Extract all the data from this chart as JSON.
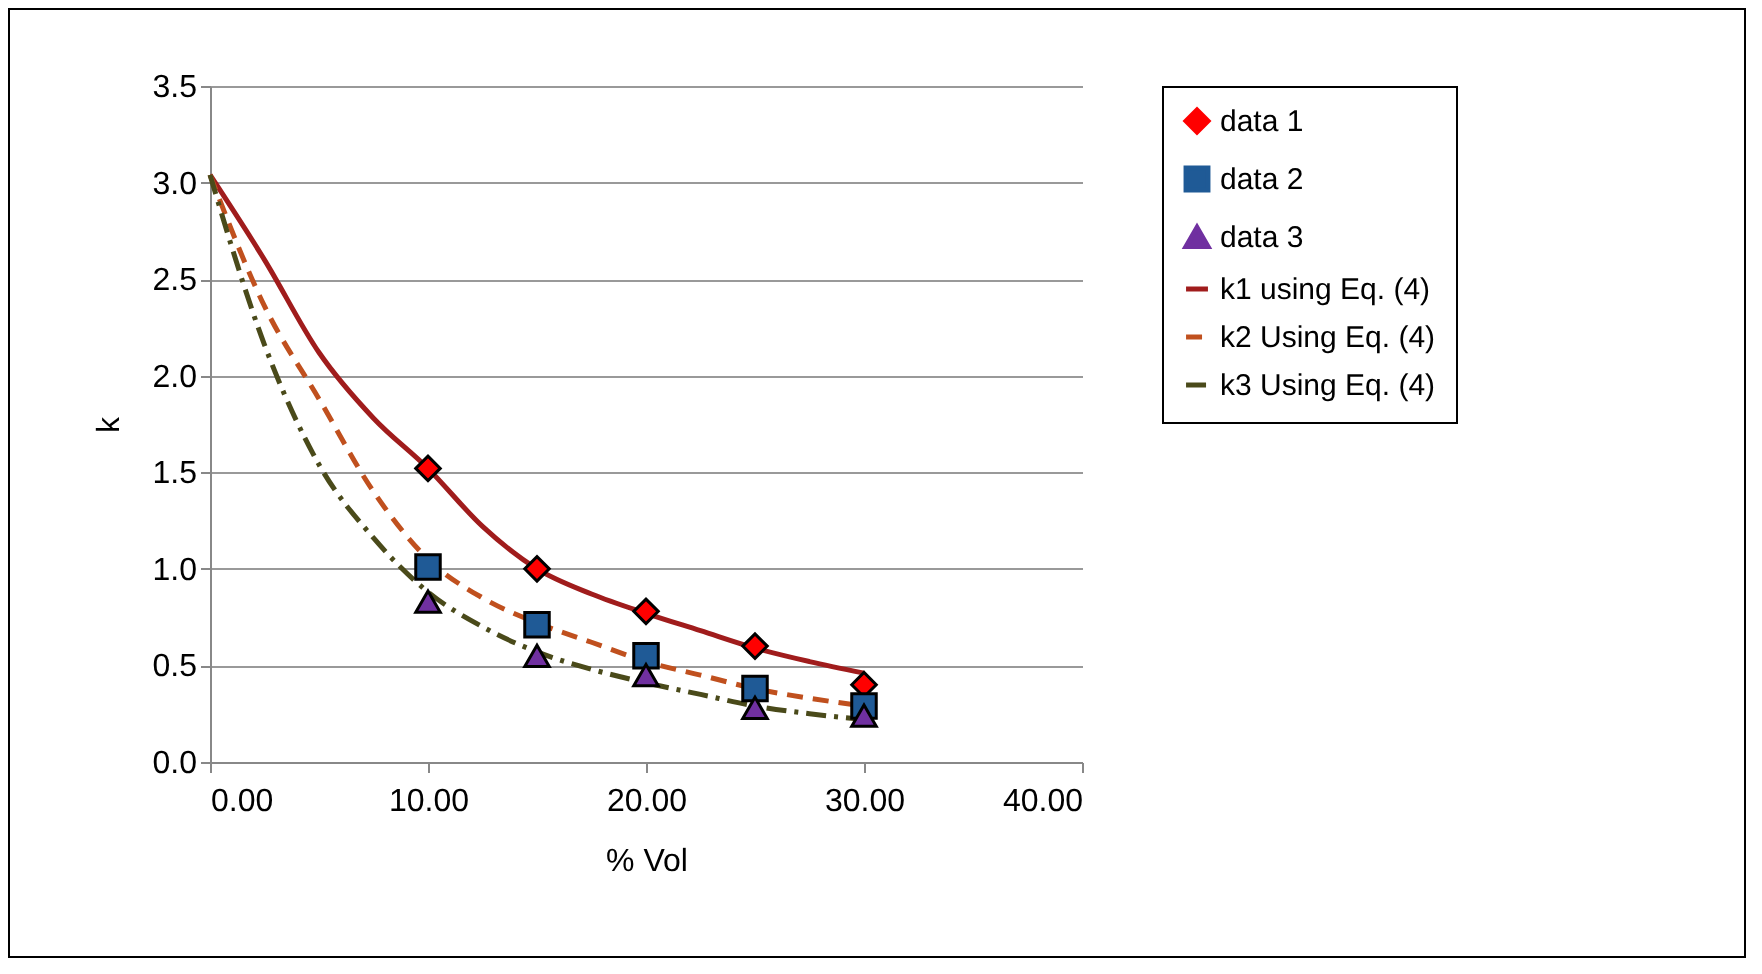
{
  "chart_data": {
    "type": "scatter",
    "xlabel": "% Vol",
    "ylabel": "k",
    "xlim": [
      0,
      40
    ],
    "ylim": [
      0,
      3.5
    ],
    "xticks": [
      {
        "value": 0,
        "label": "0.00"
      },
      {
        "value": 10,
        "label": "10.00"
      },
      {
        "value": 20,
        "label": "20.00"
      },
      {
        "value": 30,
        "label": "30.00"
      },
      {
        "value": 40,
        "label": "40.00"
      }
    ],
    "yticks": [
      {
        "value": 0,
        "label": "0.0"
      },
      {
        "value": 0.5,
        "label": "0.5"
      },
      {
        "value": 1,
        "label": "1.0"
      },
      {
        "value": 1.5,
        "label": "1.5"
      },
      {
        "value": 2,
        "label": "2.0"
      },
      {
        "value": 2.5,
        "label": "2.5"
      },
      {
        "value": 3,
        "label": "3.0"
      },
      {
        "value": 3.5,
        "label": "3.5"
      }
    ],
    "grid": "y",
    "legend": "right",
    "series": [
      {
        "name": "data 1",
        "marker": "diamond",
        "color": "#ff0000",
        "x": [
          10,
          15,
          20,
          25,
          30
        ],
        "values": [
          1.52,
          1.0,
          0.78,
          0.6,
          0.4
        ]
      },
      {
        "name": "data 2",
        "marker": "square",
        "color": "#1f5a96",
        "x": [
          10,
          15,
          20,
          25,
          30
        ],
        "values": [
          1.01,
          0.71,
          0.55,
          0.38,
          0.29
        ]
      },
      {
        "name": "data 3",
        "marker": "triangle",
        "color": "#7030a0",
        "x": [
          10,
          15,
          20,
          25,
          30
        ],
        "values": [
          0.83,
          0.55,
          0.45,
          0.28,
          0.24
        ]
      },
      {
        "name": "k1 using Eq. (4)",
        "type": "line",
        "line_style": "solid",
        "color": "#a01c1c",
        "x": [
          0,
          2.5,
          5,
          7.5,
          10,
          12.5,
          15,
          17.5,
          20,
          22.5,
          25,
          27.5,
          30
        ],
        "values": [
          3.04,
          2.6,
          2.12,
          1.78,
          1.52,
          1.22,
          1.0,
          0.87,
          0.77,
          0.68,
          0.59,
          0.52,
          0.46
        ]
      },
      {
        "name": "k2 Using Eq. (4)",
        "type": "line",
        "line_style": "dashed",
        "color": "#c0501e",
        "x": [
          0,
          2.5,
          5,
          7.5,
          10,
          12.5,
          15,
          17.5,
          20,
          22.5,
          25,
          27.5,
          30
        ],
        "values": [
          3.04,
          2.36,
          1.88,
          1.4,
          1.05,
          0.85,
          0.72,
          0.62,
          0.52,
          0.45,
          0.38,
          0.33,
          0.29
        ]
      },
      {
        "name": "k3 Using Eq. (4)",
        "type": "line",
        "line_style": "dashdot",
        "color": "#4a4a1a",
        "x": [
          0,
          2.5,
          5,
          7.5,
          10,
          12.5,
          15,
          17.5,
          20,
          22.5,
          25,
          27.5,
          30
        ],
        "values": [
          3.04,
          2.16,
          1.54,
          1.16,
          0.88,
          0.7,
          0.57,
          0.48,
          0.41,
          0.35,
          0.29,
          0.25,
          0.22
        ]
      }
    ]
  }
}
